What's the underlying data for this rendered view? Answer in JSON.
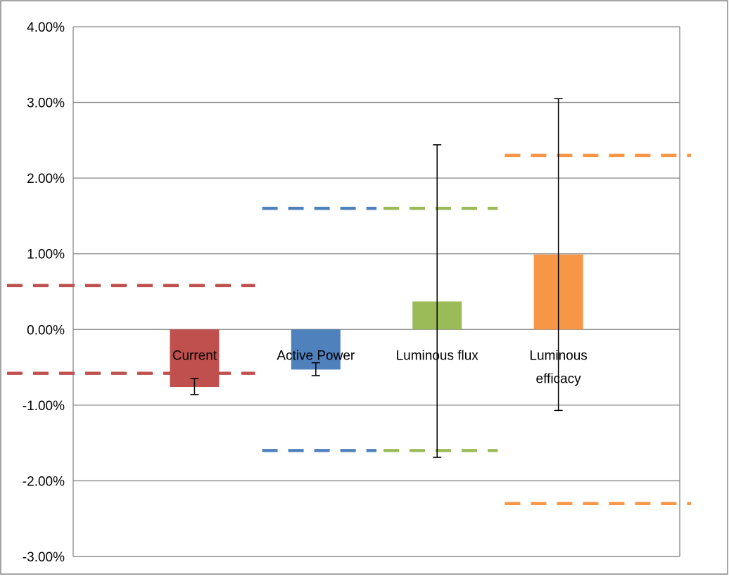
{
  "chart_data": {
    "type": "bar",
    "title": "",
    "xlabel": "",
    "ylabel": "",
    "ylim": [
      -0.03,
      0.04
    ],
    "yticks": [
      "4.00%",
      "3.00%",
      "2.00%",
      "1.00%",
      "0.00%",
      "-1.00%",
      "-2.00%",
      "-3.00%"
    ],
    "ytick_values": [
      0.04,
      0.03,
      0.02,
      0.01,
      0.0,
      -0.01,
      -0.02,
      -0.03
    ],
    "grid": true,
    "legend": "none",
    "categories": [
      {
        "label": [
          "Current"
        ],
        "value": -0.0076,
        "err_low": -0.0086,
        "err_high": -0.0065,
        "color": "#c0504d"
      },
      {
        "label": [
          "Active Power"
        ],
        "value": -0.0053,
        "err_low": -0.0061,
        "err_high": -0.0044,
        "color": "#4f81bd"
      },
      {
        "label": [
          "Luminous flux"
        ],
        "value": 0.0037,
        "err_low": -0.0169,
        "err_high": 0.0244,
        "color": "#9bbb59"
      },
      {
        "label": [
          "Luminous",
          "efficacy"
        ],
        "value": 0.0099,
        "err_low": -0.0107,
        "err_high": 0.0305,
        "color": "#f79646"
      }
    ],
    "limit_lines": [
      {
        "value": 0.0058,
        "from_index": 0,
        "to_index": 1,
        "color": "#c0504d"
      },
      {
        "value": -0.0058,
        "from_index": 0,
        "to_index": 1,
        "color": "#c0504d"
      },
      {
        "value": 0.016,
        "from_index": 1,
        "to_index": 2,
        "color": "#4f81bd"
      },
      {
        "value": -0.016,
        "from_index": 1,
        "to_index": 2,
        "color": "#4f81bd"
      },
      {
        "value": 0.016,
        "from_index": 2,
        "to_index": 3,
        "color": "#9bbb59"
      },
      {
        "value": -0.016,
        "from_index": 2,
        "to_index": 3,
        "color": "#9bbb59"
      },
      {
        "value": 0.023,
        "from_index": 3,
        "to_index": 4,
        "color": "#f79646"
      },
      {
        "value": -0.023,
        "from_index": 3,
        "to_index": 4,
        "color": "#f79646"
      }
    ]
  }
}
